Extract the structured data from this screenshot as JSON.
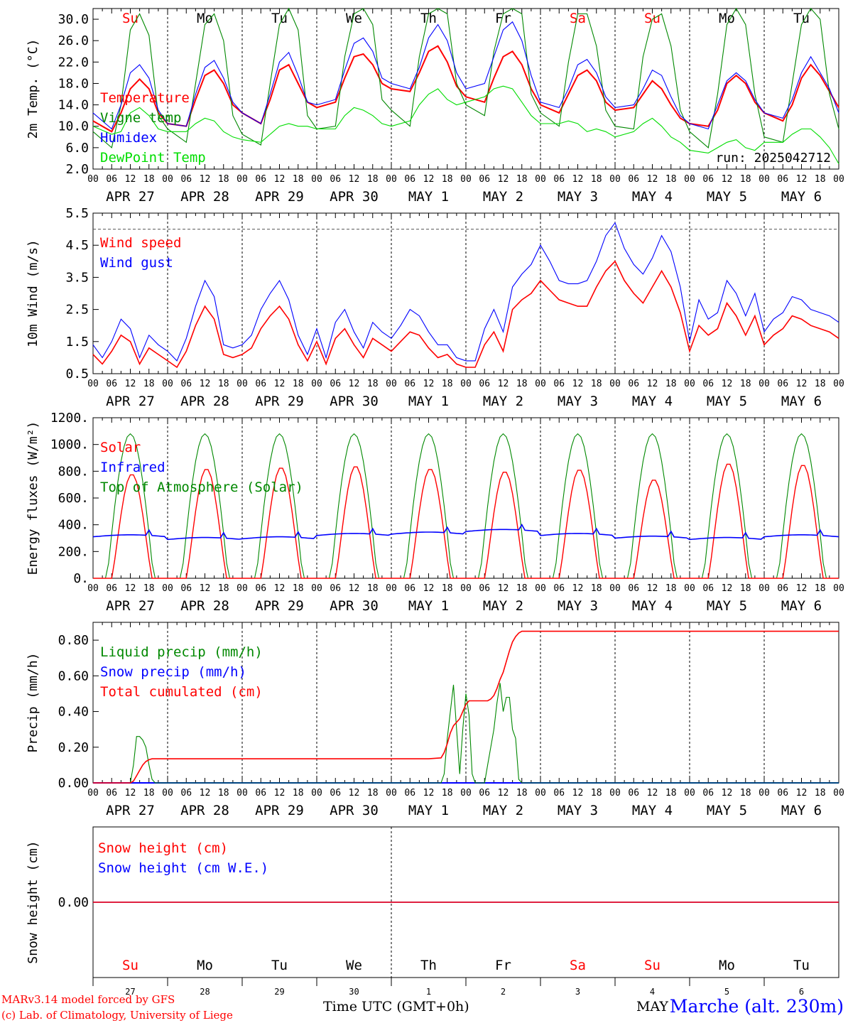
{
  "days": [
    {
      "abbr": "Su",
      "label": "APR 27",
      "num": "27",
      "weekend": true
    },
    {
      "abbr": "Mo",
      "label": "APR 28",
      "num": "28",
      "weekend": false
    },
    {
      "abbr": "Tu",
      "label": "APR 29",
      "num": "29",
      "weekend": false
    },
    {
      "abbr": "We",
      "label": "APR 30",
      "num": "30",
      "weekend": false
    },
    {
      "abbr": "Th",
      "label": "MAY  1",
      "num": "1",
      "weekend": false
    },
    {
      "abbr": "Fr",
      "label": "MAY  2",
      "num": "2",
      "weekend": false
    },
    {
      "abbr": "Sa",
      "label": "MAY  3",
      "num": "3",
      "weekend": true
    },
    {
      "abbr": "Su",
      "label": "MAY  4",
      "num": "4",
      "weekend": true
    },
    {
      "abbr": "Mo",
      "label": "MAY  5",
      "num": "5",
      "weekend": false
    },
    {
      "abbr": "Tu",
      "label": "MAY  6",
      "num": "6",
      "weekend": false
    }
  ],
  "hour_ticks": [
    "00",
    "06",
    "12",
    "18"
  ],
  "colors": {
    "red": "#ff0000",
    "green": "#008800",
    "blue": "#0000ff",
    "lightgreen": "#00dd00",
    "weekend": "#ff0000",
    "axis": "#000000"
  },
  "footer": {
    "credit_line1": "MARv3.14 model forced by GFS",
    "credit_line2": "(c) Lab. of Climatology, University of Liege",
    "xlabel": "Time UTC (GMT+0h)",
    "month": "MAY",
    "station": "Marche (alt. 230m)"
  },
  "chart_data": [
    {
      "type": "line",
      "ylabel": "2m Temp. (°C)",
      "ylim": [
        2,
        32
      ],
      "yticks": [
        2.0,
        6.0,
        10.0,
        14.0,
        18.0,
        22.0,
        26.0,
        30.0
      ],
      "ytick_labels": [
        "2.0",
        "6.0",
        "10.0",
        "14.0",
        "18.0",
        "22.0",
        "26.0",
        "30.0"
      ],
      "annotation": "run: 2025042712",
      "x_hours": [
        0,
        6,
        9,
        12,
        15,
        18,
        21,
        24,
        30,
        33,
        36,
        39,
        42,
        45,
        48,
        54,
        57,
        60,
        63,
        66,
        69,
        72,
        78,
        81,
        84,
        87,
        90,
        93,
        96,
        102,
        105,
        108,
        111,
        114,
        117,
        120,
        126,
        129,
        132,
        135,
        138,
        141,
        144,
        150,
        153,
        156,
        159,
        162,
        165,
        168,
        174,
        177,
        180,
        183,
        186,
        189,
        192,
        198,
        201,
        204,
        207,
        210,
        213,
        216,
        222,
        225,
        228,
        231,
        234,
        237,
        240
      ],
      "series": [
        {
          "name": "Temperature",
          "color": "#ff0000",
          "values": [
            11.0,
            9.0,
            12.5,
            17.0,
            18.8,
            17.0,
            12.5,
            10.5,
            10.0,
            15.0,
            19.5,
            20.5,
            18.0,
            14.0,
            12.5,
            10.5,
            15.0,
            20.5,
            21.5,
            18.0,
            14.5,
            13.5,
            14.5,
            19.0,
            23.0,
            23.5,
            21.5,
            18.0,
            17.0,
            16.5,
            20.0,
            24.0,
            25.0,
            22.0,
            17.5,
            15.5,
            14.5,
            19.0,
            23.0,
            24.0,
            21.5,
            17.0,
            14.0,
            12.5,
            16.0,
            19.5,
            20.5,
            18.5,
            14.5,
            13.0,
            13.5,
            16.0,
            18.5,
            17.0,
            14.0,
            11.5,
            10.5,
            10.0,
            13.0,
            18.0,
            19.5,
            18.0,
            14.5,
            12.5,
            11.0,
            14.0,
            19.0,
            21.5,
            19.5,
            16.5,
            13.5
          ]
        },
        {
          "name": "Vigne temp",
          "color": "#008800",
          "values": [
            9.0,
            6.0,
            14.0,
            28.0,
            31.0,
            27.0,
            12.0,
            9.5,
            7.0,
            18.0,
            29.0,
            31.0,
            26.0,
            12.0,
            8.5,
            6.5,
            18.0,
            29.0,
            32.0,
            28.0,
            12.0,
            9.5,
            10.0,
            23.0,
            31.0,
            32.0,
            29.0,
            15.0,
            13.0,
            10.0,
            23.0,
            31.0,
            32.0,
            31.0,
            18.0,
            14.0,
            12.0,
            24.0,
            31.0,
            32.0,
            31.0,
            16.0,
            12.5,
            10.0,
            22.0,
            31.0,
            31.0,
            25.0,
            13.0,
            10.0,
            9.5,
            23.0,
            30.0,
            31.0,
            25.0,
            13.0,
            9.0,
            6.0,
            16.0,
            29.0,
            32.0,
            29.0,
            16.0,
            8.0,
            7.0,
            18.0,
            29.0,
            32.0,
            30.0,
            16.0,
            9.5
          ]
        },
        {
          "name": "Humidex",
          "color": "#0000ff",
          "values": [
            12.5,
            9.5,
            14.0,
            20.0,
            21.5,
            19.0,
            13.0,
            10.5,
            10.0,
            16.0,
            21.0,
            22.3,
            19.0,
            14.5,
            12.5,
            10.5,
            16.0,
            22.0,
            23.8,
            19.5,
            14.5,
            14.0,
            15.0,
            20.5,
            25.5,
            26.5,
            24.0,
            19.0,
            18.0,
            17.0,
            21.0,
            26.5,
            29.0,
            26.0,
            20.0,
            17.0,
            18.0,
            23.0,
            28.0,
            29.5,
            26.0,
            19.5,
            14.5,
            13.5,
            17.0,
            21.5,
            22.5,
            20.0,
            15.5,
            13.5,
            14.0,
            17.0,
            20.5,
            19.5,
            15.5,
            12.0,
            10.5,
            9.5,
            14.0,
            18.5,
            20.0,
            18.5,
            15.0,
            12.5,
            11.5,
            15.0,
            20.0,
            23.0,
            20.0,
            17.0,
            12.5
          ]
        },
        {
          "name": "DewPoint Temp",
          "color": "#00dd00",
          "values": [
            10.0,
            8.5,
            9.0,
            12.5,
            13.5,
            12.0,
            9.5,
            9.0,
            9.0,
            10.5,
            11.5,
            11.0,
            9.0,
            8.0,
            7.5,
            7.0,
            8.5,
            10.0,
            10.5,
            10.0,
            10.0,
            9.5,
            9.5,
            12.0,
            13.5,
            13.0,
            12.0,
            10.5,
            10.0,
            11.0,
            14.0,
            16.0,
            17.0,
            15.0,
            14.0,
            14.5,
            15.5,
            17.0,
            17.5,
            17.0,
            14.5,
            12.0,
            10.5,
            10.5,
            11.0,
            10.5,
            9.0,
            9.5,
            9.0,
            8.0,
            9.0,
            10.5,
            11.5,
            10.0,
            8.0,
            7.0,
            5.5,
            5.0,
            6.0,
            7.0,
            7.5,
            6.0,
            5.5,
            7.0,
            7.0,
            8.5,
            9.5,
            9.5,
            8.0,
            6.0,
            3.0
          ]
        }
      ]
    },
    {
      "type": "line",
      "ylabel": "10m Wind (m/s)",
      "ylim": [
        0.5,
        5.5
      ],
      "yticks": [
        0.5,
        1.5,
        2.5,
        3.5,
        4.5,
        5.5
      ],
      "ytick_labels": [
        "0.5",
        "1.5",
        "2.5",
        "3.5",
        "4.5",
        "5.5"
      ],
      "ref_line": 5.0,
      "x_hours": [
        0,
        3,
        6,
        9,
        12,
        15,
        18,
        21,
        24,
        27,
        30,
        33,
        36,
        39,
        42,
        45,
        48,
        51,
        54,
        57,
        60,
        63,
        66,
        69,
        72,
        75,
        78,
        81,
        84,
        87,
        90,
        93,
        96,
        99,
        102,
        105,
        108,
        111,
        114,
        117,
        120,
        123,
        126,
        129,
        132,
        135,
        138,
        141,
        144,
        147,
        150,
        153,
        156,
        159,
        162,
        165,
        168,
        171,
        174,
        177,
        180,
        183,
        186,
        189,
        192,
        195,
        198,
        201,
        204,
        207,
        210,
        213,
        216,
        219,
        222,
        225,
        228,
        231,
        234,
        237,
        240
      ],
      "series": [
        {
          "name": "Wind speed",
          "color": "#ff0000",
          "values": [
            1.1,
            0.8,
            1.2,
            1.7,
            1.5,
            0.8,
            1.3,
            1.1,
            0.9,
            0.7,
            1.2,
            2.0,
            2.6,
            2.2,
            1.1,
            1.0,
            1.1,
            1.3,
            1.9,
            2.3,
            2.6,
            2.2,
            1.4,
            0.9,
            1.5,
            0.8,
            1.6,
            1.9,
            1.4,
            1.0,
            1.6,
            1.4,
            1.2,
            1.5,
            1.8,
            1.7,
            1.3,
            1.0,
            1.1,
            0.8,
            0.7,
            0.7,
            1.4,
            1.8,
            1.2,
            2.5,
            2.8,
            3.0,
            3.4,
            3.1,
            2.8,
            2.7,
            2.6,
            2.6,
            3.2,
            3.7,
            4.0,
            3.4,
            3.0,
            2.7,
            3.2,
            3.7,
            3.2,
            2.4,
            1.2,
            2.0,
            1.7,
            1.9,
            2.7,
            2.3,
            1.7,
            2.3,
            1.4,
            1.7,
            1.9,
            2.3,
            2.2,
            2.0,
            1.9,
            1.8,
            1.6
          ]
        },
        {
          "name": "Wind gust",
          "color": "#0000ff",
          "values": [
            1.4,
            1.0,
            1.5,
            2.2,
            1.9,
            1.0,
            1.7,
            1.4,
            1.2,
            0.9,
            1.6,
            2.6,
            3.4,
            2.9,
            1.4,
            1.3,
            1.4,
            1.7,
            2.5,
            3.0,
            3.4,
            2.8,
            1.7,
            1.1,
            1.9,
            1.0,
            2.1,
            2.5,
            1.8,
            1.3,
            2.1,
            1.8,
            1.6,
            2.0,
            2.5,
            2.3,
            1.8,
            1.4,
            1.4,
            1.0,
            0.9,
            0.9,
            1.9,
            2.5,
            1.8,
            3.2,
            3.6,
            3.9,
            4.5,
            4.0,
            3.4,
            3.3,
            3.3,
            3.4,
            4.0,
            4.8,
            5.2,
            4.4,
            3.9,
            3.6,
            4.1,
            4.8,
            4.3,
            3.2,
            1.5,
            2.8,
            2.2,
            2.4,
            3.4,
            3.0,
            2.3,
            3.0,
            1.8,
            2.2,
            2.4,
            2.9,
            2.8,
            2.5,
            2.4,
            2.3,
            2.1
          ]
        }
      ]
    },
    {
      "type": "line",
      "ylabel": "Energy fluxes (W/m²)",
      "ylim": [
        0,
        1200
      ],
      "yticks": [
        0,
        200,
        400,
        600,
        800,
        1000,
        1200
      ],
      "ytick_labels": [
        "0.",
        "200.",
        "400.",
        "600.",
        "800.",
        "1000.",
        "1200."
      ],
      "solar_peaks": [
        780,
        820,
        830,
        840,
        820,
        800,
        815,
        740,
        860,
        850
      ],
      "toa_peak": 1080,
      "infrared_daily": [
        310,
        290,
        295,
        320,
        330,
        350,
        320,
        300,
        290,
        310
      ],
      "series": [
        {
          "name": "Solar",
          "color": "#ff0000"
        },
        {
          "name": "Infrared",
          "color": "#0000ff"
        },
        {
          "name": "Top of Atmosphere (Solar)",
          "color": "#008800"
        }
      ]
    },
    {
      "type": "line",
      "ylabel": "Precip (mm/h)",
      "ylim": [
        0,
        0.9
      ],
      "yticks": [
        0.0,
        0.2,
        0.4,
        0.6,
        0.8
      ],
      "ytick_labels": [
        "0.00",
        "0.20",
        "0.40",
        "0.60",
        "0.80"
      ],
      "x_hours": [
        0,
        12,
        13,
        14,
        15,
        16,
        17,
        18,
        19,
        20,
        21,
        22,
        23,
        24,
        108,
        112,
        113,
        114,
        115,
        116,
        117,
        118,
        119,
        120,
        121,
        122,
        123,
        124,
        125,
        126,
        127,
        128,
        129,
        130,
        131,
        132,
        133,
        134,
        135,
        136,
        137,
        138,
        139,
        140,
        141,
        142,
        143,
        144,
        240
      ],
      "series": [
        {
          "name": "Liquid precip (mm/h)",
          "color": "#008800",
          "values": [
            0,
            0,
            0.1,
            0.26,
            0.26,
            0.24,
            0.2,
            0.1,
            0.02,
            0,
            0,
            0,
            0,
            0,
            0,
            0,
            0.05,
            0.25,
            0.4,
            0.55,
            0.3,
            0.05,
            0.3,
            0.5,
            0.38,
            0.05,
            0,
            0,
            0,
            0,
            0.1,
            0.2,
            0.3,
            0.45,
            0.56,
            0.4,
            0.48,
            0.48,
            0.3,
            0.25,
            0.02,
            0,
            0,
            0,
            0,
            0,
            0,
            0,
            0
          ]
        },
        {
          "name": "Snow precip (mm/h)",
          "color": "#0000ff",
          "values": [
            0,
            0,
            0,
            0,
            0,
            0,
            0,
            0,
            0,
            0,
            0,
            0,
            0,
            0,
            0,
            0,
            0,
            0,
            0,
            0,
            0,
            0,
            0,
            0,
            0,
            0,
            0,
            0,
            0,
            0,
            0,
            0,
            0,
            0,
            0,
            0,
            0,
            0,
            0,
            0,
            0,
            0,
            0,
            0,
            0,
            0,
            0,
            0,
            0
          ]
        },
        {
          "name": "Total cumulated (cm)",
          "color": "#ff0000",
          "values": [
            0,
            0,
            0.01,
            0.04,
            0.07,
            0.1,
            0.12,
            0.13,
            0.135,
            0.135,
            0.135,
            0.135,
            0.135,
            0.135,
            0.135,
            0.14,
            0.17,
            0.22,
            0.28,
            0.32,
            0.34,
            0.36,
            0.4,
            0.44,
            0.46,
            0.46,
            0.46,
            0.46,
            0.46,
            0.46,
            0.46,
            0.47,
            0.49,
            0.53,
            0.58,
            0.62,
            0.68,
            0.74,
            0.79,
            0.82,
            0.84,
            0.85,
            0.85,
            0.85,
            0.85,
            0.85,
            0.85,
            0.85,
            0.85
          ]
        }
      ]
    },
    {
      "type": "line",
      "ylabel": "Snow height (cm)",
      "ylim": [
        -1,
        1
      ],
      "yticks": [
        0.0
      ],
      "ytick_labels": [
        "0.00"
      ],
      "series": [
        {
          "name": "Snow height (cm)",
          "color": "#ff0000",
          "values": [
            0,
            0
          ]
        },
        {
          "name": "Snow height (cm W.E.)",
          "color": "#0000ff",
          "values": [
            0,
            0
          ]
        }
      ]
    }
  ]
}
